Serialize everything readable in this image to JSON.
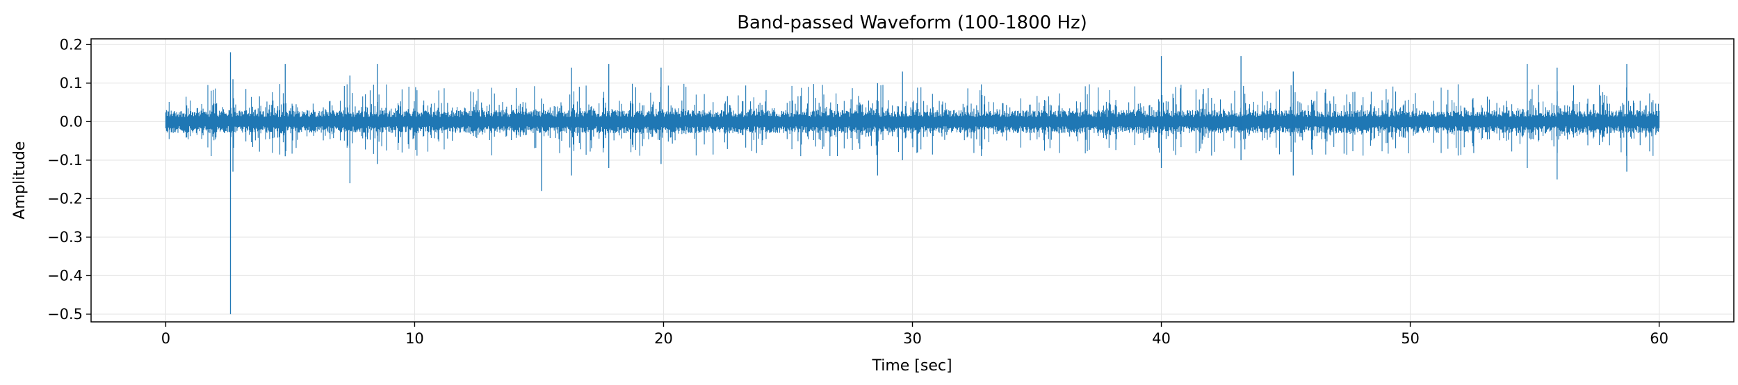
{
  "chart_data": {
    "type": "line",
    "title": "Band-passed Waveform (100-1800 Hz)",
    "xlabel": "Time [sec]",
    "ylabel": "Amplitude",
    "xlim": [
      -3,
      63
    ],
    "ylim": [
      -0.52,
      0.215
    ],
    "xticks": [
      0,
      10,
      20,
      30,
      40,
      50,
      60
    ],
    "xtick_labels": [
      "0",
      "10",
      "20",
      "30",
      "40",
      "50",
      "60"
    ],
    "yticks": [
      0.2,
      0.1,
      0.0,
      -0.1,
      -0.2,
      -0.3,
      -0.4,
      -0.5
    ],
    "ytick_labels": [
      "0.2",
      "0.1",
      "0.0",
      "−0.1",
      "−0.2",
      "−0.3",
      "−0.4",
      "−0.5"
    ],
    "grid": true,
    "colors": {
      "series": "#1f77b4",
      "grid": "#e6e6e6",
      "axis": "#000000"
    },
    "series": [
      {
        "time_range": [
          0,
          60
        ],
        "baseline_amplitude": 0.02,
        "notable_peaks": [
          {
            "t": 2.6,
            "min": -0.5,
            "max": 0.18
          },
          {
            "t": 2.7,
            "min": -0.13,
            "max": 0.11
          },
          {
            "t": 4.8,
            "min": -0.09,
            "max": 0.15
          },
          {
            "t": 7.4,
            "min": -0.16,
            "max": 0.12
          },
          {
            "t": 8.5,
            "min": -0.11,
            "max": 0.15
          },
          {
            "t": 15.1,
            "min": -0.18,
            "max": 0.06
          },
          {
            "t": 16.3,
            "min": -0.14,
            "max": 0.14
          },
          {
            "t": 17.8,
            "min": -0.12,
            "max": 0.15
          },
          {
            "t": 19.9,
            "min": -0.11,
            "max": 0.14
          },
          {
            "t": 28.6,
            "min": -0.14,
            "max": 0.1
          },
          {
            "t": 29.6,
            "min": -0.1,
            "max": 0.13
          },
          {
            "t": 40.0,
            "min": -0.12,
            "max": 0.17
          },
          {
            "t": 43.2,
            "min": -0.1,
            "max": 0.17
          },
          {
            "t": 45.3,
            "min": -0.14,
            "max": 0.13
          },
          {
            "t": 54.7,
            "min": -0.12,
            "max": 0.15
          },
          {
            "t": 55.9,
            "min": -0.15,
            "max": 0.14
          },
          {
            "t": 58.7,
            "min": -0.13,
            "max": 0.15
          }
        ]
      }
    ]
  }
}
